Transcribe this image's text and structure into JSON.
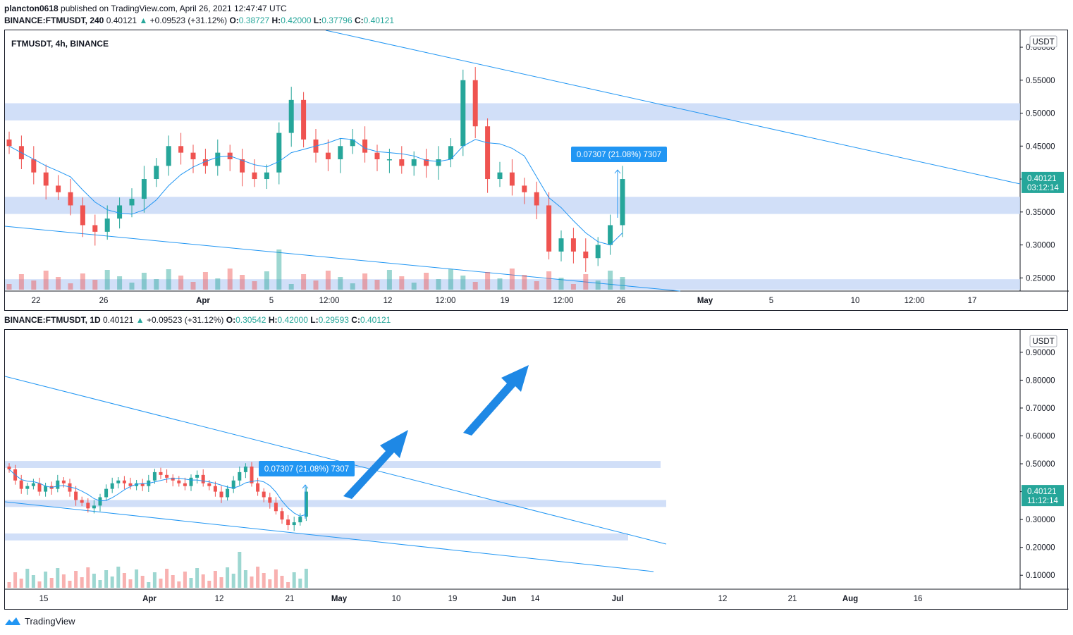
{
  "header": {
    "publisher": "plancton0618",
    "published_text": "published on TradingView.com, April 26, 2021 12:47:47 UTC"
  },
  "top_pane": {
    "symbol": "BINANCE:FTMUSDT, 240",
    "last": "0.40121",
    "change": "+0.09523 (+31.12%)",
    "open_label": "O:",
    "open": "0.38727",
    "high_label": "H:",
    "high": "0.42000",
    "low_label": "L:",
    "low": "0.37796",
    "close_label": "C:",
    "close": "0.40121",
    "chart_title": "FTMUSDT, 4h, BINANCE",
    "currency": "USDT",
    "price_tag": "0.40121",
    "countdown": "03:12:14",
    "measure_label": "0.07307 (21.08%) 7307"
  },
  "bottom_pane": {
    "symbol": "BINANCE:FTMUSDT, 1D",
    "last": "0.40121",
    "change": "+0.09523 (+31.12%)",
    "open_label": "O:",
    "open": "0.30542",
    "high_label": "H:",
    "high": "0.42000",
    "low_label": "L:",
    "low": "0.29593",
    "close_label": "C:",
    "close": "0.40121",
    "currency": "USDT",
    "price_tag": "0.40121",
    "countdown": "11:12:14",
    "measure_label": "0.07307 (21.08%) 7307"
  },
  "footer": {
    "brand": "TradingView"
  },
  "colors": {
    "up": "#26a69a",
    "down": "#ef5350",
    "zone": "#c9d9f7",
    "trend": "#2196f3",
    "ma": "#2196f3",
    "tag": "#26a69a"
  },
  "chart_data": [
    {
      "type": "candlestick",
      "timeframe": "4h",
      "title": "FTMUSDT, 4h, BINANCE",
      "ylim": [
        0.23,
        0.615
      ],
      "y_ticks": [
        "0.60000",
        "0.55000",
        "0.50000",
        "0.45000",
        "0.40000",
        "0.35000",
        "0.30000",
        "0.25000"
      ],
      "y_tick_values": [
        0.6,
        0.55,
        0.5,
        0.45,
        0.4,
        0.35,
        0.3,
        0.25
      ],
      "x_ticks": [
        "22",
        "26",
        "Apr",
        "5",
        "12:00",
        "12",
        "12:00",
        "19",
        "12:00",
        "26",
        "May",
        "5",
        "10",
        "12:00",
        "17"
      ],
      "zones": [
        [
          0.489,
          0.515
        ],
        [
          0.347,
          0.373
        ],
        [
          0.232,
          0.248
        ]
      ],
      "closes_approx": [
        0.45,
        0.43,
        0.41,
        0.39,
        0.38,
        0.36,
        0.33,
        0.32,
        0.34,
        0.36,
        0.37,
        0.4,
        0.42,
        0.45,
        0.44,
        0.43,
        0.42,
        0.44,
        0.43,
        0.41,
        0.4,
        0.41,
        0.47,
        0.52,
        0.46,
        0.44,
        0.43,
        0.45,
        0.46,
        0.44,
        0.43,
        0.43,
        0.42,
        0.43,
        0.42,
        0.43,
        0.45,
        0.55,
        0.48,
        0.4,
        0.41,
        0.39,
        0.38,
        0.36,
        0.29,
        0.31,
        0.29,
        0.28,
        0.3,
        0.33,
        0.4
      ],
      "measure": "0.07307 (21.08%) 7307"
    },
    {
      "type": "candlestick",
      "timeframe": "1D",
      "ylim": [
        0.05,
        0.93
      ],
      "y_ticks": [
        "0.90000",
        "0.80000",
        "0.70000",
        "0.60000",
        "0.50000",
        "0.40000",
        "0.30000",
        "0.20000",
        "0.10000"
      ],
      "y_tick_values": [
        0.9,
        0.8,
        0.7,
        0.6,
        0.5,
        0.4,
        0.3,
        0.2,
        0.1
      ],
      "x_ticks": [
        "15",
        "Apr",
        "12",
        "21",
        "May",
        "10",
        "19",
        "Jun",
        "14",
        "Jul",
        "12",
        "21",
        "Aug",
        "16"
      ],
      "zones": [
        [
          0.485,
          0.51
        ],
        [
          0.345,
          0.37
        ],
        [
          0.225,
          0.25
        ]
      ],
      "closes_approx": [
        0.48,
        0.44,
        0.41,
        0.42,
        0.43,
        0.4,
        0.42,
        0.41,
        0.44,
        0.43,
        0.4,
        0.37,
        0.36,
        0.34,
        0.35,
        0.38,
        0.41,
        0.43,
        0.44,
        0.43,
        0.42,
        0.43,
        0.42,
        0.44,
        0.47,
        0.46,
        0.45,
        0.44,
        0.43,
        0.42,
        0.45,
        0.46,
        0.43,
        0.42,
        0.4,
        0.38,
        0.41,
        0.44,
        0.47,
        0.49,
        0.43,
        0.4,
        0.38,
        0.36,
        0.33,
        0.3,
        0.28,
        0.29,
        0.31,
        0.4
      ],
      "measure": "0.07307 (21.08%) 7307"
    }
  ]
}
